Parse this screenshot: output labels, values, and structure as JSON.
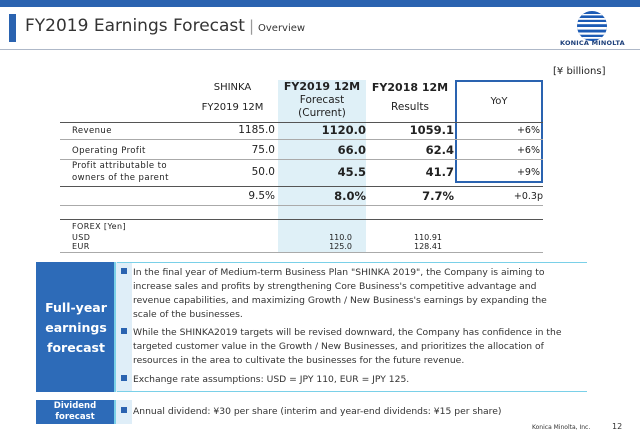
{
  "header": {
    "title": "FY2019 Earnings Forecast",
    "separator": "|",
    "subtitle": "Overview",
    "logo_text": "KONICA MINOLTA",
    "brand_color": "#2a63b0"
  },
  "table": {
    "unit": "[¥ billions]",
    "columns": {
      "shinka_l1": "SHINKA",
      "shinka_l2": "FY2019  12M",
      "current_l1": "FY2019 12M",
      "current_l2": "Forecast",
      "current_l3": "(Current)",
      "fy18_l1": "FY2018 12M",
      "fy18_l2": "Results",
      "yoy": "YoY"
    },
    "rows": [
      {
        "label": "Revenue",
        "shinka": "1185.0",
        "current": "1120.0",
        "fy18": "1059.1",
        "yoy": "+6%"
      },
      {
        "label": "Operating Profit",
        "shinka": "75.0",
        "current": "66.0",
        "fy18": "62.4",
        "yoy": "+6%"
      },
      {
        "label_l1": "Profit attributable to",
        "label_l2": "owners of the parent",
        "shinka": "50.0",
        "current": "45.5",
        "fy18": "41.7",
        "yoy": "+9%"
      }
    ],
    "margin_row": {
      "shinka": "9.5%",
      "current": "8.0%",
      "fy18": "7.7%",
      "yoy": "+0.3p"
    },
    "forex": {
      "label": "FOREX    [Yen]",
      "usd_label": "USD",
      "eur_label": "EUR",
      "usd_current": "110.0",
      "eur_current": "125.0",
      "usd_fy18": "110.91",
      "eur_fy18": "128.41"
    }
  },
  "forecast_panel": {
    "title_l1": "Full-year",
    "title_l2": "earnings",
    "title_l3": "forecast",
    "bullets": [
      {
        "l1": "In the final year of Medium-term Business Plan \"SHINKA 2019\", the Company is aiming to",
        "l2": "increase sales and profits by strengthening Core Business's competitive advantage and",
        "l3": "revenue capabilities, and maximizing Growth / New Business's earnings by expanding the",
        "l4": "scale of the businesses."
      },
      {
        "l1": "While the SHINKA2019 targets will be revised downward, the Company has confidence in the",
        "l2": "targeted customer value  in the Growth / New Businesses, and prioritizes the allocation of",
        "l3": "resources in the area to cultivate the businesses for the  future revenue."
      },
      {
        "l1": "Exchange rate assumptions: USD = JPY 110, EUR = JPY 125."
      }
    ]
  },
  "dividend_panel": {
    "title_l1": "Dividend",
    "title_l2": "forecast",
    "text": "Annual dividend: ¥30 per share (interim and year-end dividends: ¥15 per share)"
  },
  "footer": {
    "company": "Konica Minolta, Inc.",
    "page": "12"
  }
}
